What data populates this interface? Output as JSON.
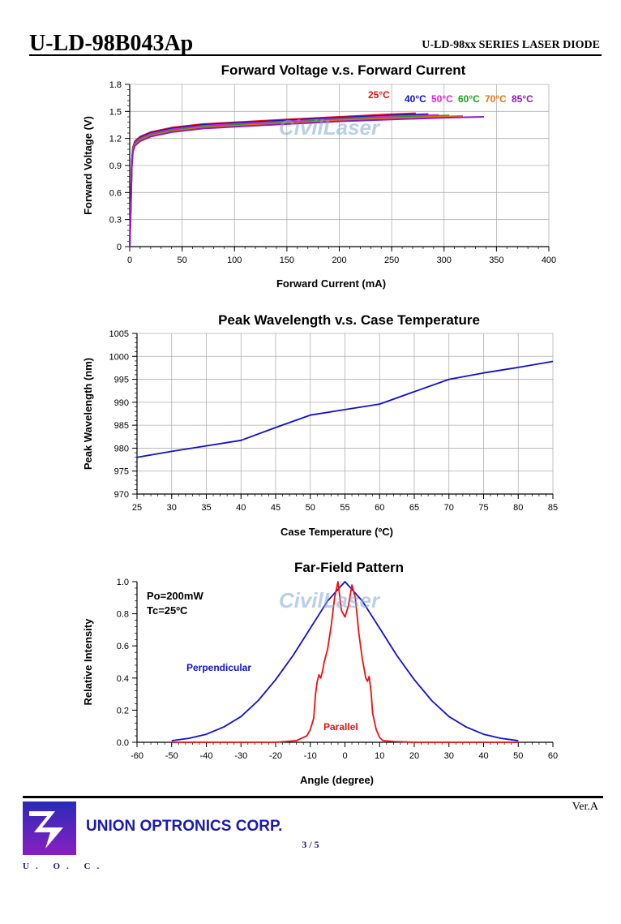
{
  "header": {
    "part_number": "U-LD-98B043Ap",
    "series": "U-LD-98xx SERIES LASER DIODE"
  },
  "footer": {
    "version": "Ver.A",
    "company": "UNION OPTRONICS CORP.",
    "page": "3 / 5",
    "logo_text": "U. O. C."
  },
  "watermark": "CivilLaser",
  "colors": {
    "axis": "#000000",
    "grid": "#b0b0b0",
    "blue": "#1010d0",
    "red": "#ee1010"
  },
  "chart_data": [
    {
      "type": "line",
      "title": "Forward Voltage v.s. Forward Current",
      "xlabel": "Forward Current (mA)",
      "ylabel": "Forward Voltage (V)",
      "xlim": [
        0,
        400
      ],
      "ylim": [
        0,
        1.8
      ],
      "xticks": [
        0,
        50,
        100,
        150,
        200,
        250,
        300,
        350,
        400
      ],
      "yticks": [
        0,
        0.3,
        0.6,
        0.9,
        1.2,
        1.5,
        1.8
      ],
      "ytick_labels": [
        "0",
        "0.3",
        "0.6",
        "0.9",
        "1.2",
        "1.5",
        "1.8"
      ],
      "grid": true,
      "legend": [
        {
          "label": "25°C",
          "color": "#ee1010"
        },
        {
          "label": "40°C",
          "color": "#1010d0"
        },
        {
          "label": "50°C",
          "color": "#e020e0"
        },
        {
          "label": "60°C",
          "color": "#18a018"
        },
        {
          "label": "70°C",
          "color": "#f07010"
        },
        {
          "label": "85°C",
          "color": "#9018c0"
        }
      ],
      "series": [
        {
          "color": "#ee1010",
          "x": [
            0,
            1,
            2,
            3,
            5,
            10,
            20,
            40,
            70,
            100,
            150,
            200,
            250,
            273
          ],
          "y": [
            0,
            0.5,
            0.95,
            1.1,
            1.17,
            1.22,
            1.27,
            1.32,
            1.36,
            1.38,
            1.41,
            1.44,
            1.47,
            1.48
          ]
        },
        {
          "color": "#1010d0",
          "x": [
            0,
            1,
            2,
            3,
            5,
            10,
            20,
            40,
            70,
            100,
            150,
            200,
            250,
            285
          ],
          "y": [
            0,
            0.48,
            0.93,
            1.09,
            1.16,
            1.21,
            1.26,
            1.31,
            1.35,
            1.37,
            1.4,
            1.43,
            1.455,
            1.47
          ]
        },
        {
          "color": "#e020e0",
          "x": [
            0,
            1,
            2,
            3,
            5,
            10,
            20,
            40,
            70,
            100,
            150,
            200,
            250,
            295
          ],
          "y": [
            0,
            0.46,
            0.92,
            1.08,
            1.15,
            1.2,
            1.25,
            1.3,
            1.34,
            1.36,
            1.39,
            1.42,
            1.445,
            1.46
          ]
        },
        {
          "color": "#18a018",
          "x": [
            0,
            1,
            2,
            3,
            5,
            10,
            20,
            40,
            70,
            100,
            150,
            200,
            250,
            305
          ],
          "y": [
            0,
            0.44,
            0.91,
            1.07,
            1.14,
            1.19,
            1.24,
            1.29,
            1.33,
            1.35,
            1.38,
            1.41,
            1.435,
            1.455
          ]
        },
        {
          "color": "#f07010",
          "x": [
            0,
            1,
            2,
            3,
            5,
            10,
            20,
            40,
            70,
            100,
            150,
            200,
            250,
            318
          ],
          "y": [
            0,
            0.42,
            0.9,
            1.06,
            1.13,
            1.18,
            1.23,
            1.28,
            1.32,
            1.34,
            1.37,
            1.4,
            1.425,
            1.45
          ]
        },
        {
          "color": "#9018c0",
          "x": [
            0,
            1,
            2,
            3,
            5,
            10,
            20,
            40,
            70,
            100,
            150,
            200,
            250,
            300,
            338
          ],
          "y": [
            0,
            0.4,
            0.89,
            1.05,
            1.12,
            1.17,
            1.22,
            1.27,
            1.31,
            1.33,
            1.36,
            1.39,
            1.41,
            1.43,
            1.44
          ]
        }
      ]
    },
    {
      "type": "line",
      "title": "Peak Wavelength v.s. Case Temperature",
      "xlabel": "Case Temperature (ºC)",
      "ylabel": "Peak Wavelength (nm)",
      "xlim": [
        25,
        85
      ],
      "ylim": [
        970,
        1005
      ],
      "xticks": [
        25,
        30,
        35,
        40,
        45,
        50,
        55,
        60,
        65,
        70,
        75,
        80,
        85
      ],
      "yticks": [
        970,
        975,
        980,
        985,
        990,
        995,
        1000,
        1005
      ],
      "grid": true,
      "series": [
        {
          "color": "#1010d0",
          "x": [
            25,
            30,
            35,
            40,
            45,
            50,
            55,
            60,
            65,
            70,
            75,
            80,
            85
          ],
          "y": [
            978.0,
            979.3,
            980.5,
            981.7,
            984.5,
            987.2,
            988.4,
            989.6,
            992.3,
            995.0,
            996.4,
            997.6,
            998.9
          ]
        }
      ]
    },
    {
      "type": "line",
      "title": "Far-Field Pattern",
      "xlabel": "Angle (degree)",
      "ylabel": "Relative Intensity",
      "xlim": [
        -60,
        60
      ],
      "ylim": [
        0,
        1.0
      ],
      "xticks": [
        -60,
        -50,
        -40,
        -30,
        -20,
        -10,
        0,
        10,
        20,
        30,
        40,
        50,
        60
      ],
      "yticks": [
        0,
        0.2,
        0.4,
        0.6,
        0.8,
        1.0
      ],
      "ytick_labels": [
        "0.0",
        "0.2",
        "0.4",
        "0.6",
        "0.8",
        "1.0"
      ],
      "grid": false,
      "annotations": [
        "Po=200mW",
        "Tc=25ºC"
      ],
      "series": [
        {
          "name": "Perpendicular",
          "color": "#1010d0",
          "x": [
            -50,
            -45,
            -40,
            -35,
            -30,
            -25,
            -20,
            -15,
            -10,
            -5,
            0,
            5,
            10,
            15,
            20,
            25,
            30,
            35,
            40,
            45,
            50
          ],
          "y": [
            0.01,
            0.025,
            0.05,
            0.095,
            0.16,
            0.26,
            0.39,
            0.54,
            0.71,
            0.88,
            1.0,
            0.88,
            0.71,
            0.54,
            0.39,
            0.26,
            0.16,
            0.095,
            0.05,
            0.025,
            0.01
          ]
        },
        {
          "name": "Parallel",
          "color": "#ee1010",
          "x": [
            -50,
            -20,
            -14,
            -11,
            -10,
            -9,
            -8.5,
            -8,
            -7.5,
            -7,
            -6.5,
            -6,
            -5,
            -4,
            -3,
            -2,
            -1,
            0,
            1,
            2,
            3,
            4,
            5,
            6,
            6.5,
            7,
            7.5,
            8,
            9,
            10,
            11,
            14,
            20,
            50
          ],
          "y": [
            0,
            0,
            0.01,
            0.04,
            0.08,
            0.15,
            0.3,
            0.38,
            0.42,
            0.4,
            0.44,
            0.5,
            0.58,
            0.72,
            0.9,
            1.0,
            0.82,
            0.78,
            0.85,
            0.98,
            0.9,
            0.68,
            0.52,
            0.4,
            0.38,
            0.41,
            0.32,
            0.18,
            0.08,
            0.03,
            0.01,
            0.005,
            0,
            0
          ]
        }
      ]
    }
  ]
}
